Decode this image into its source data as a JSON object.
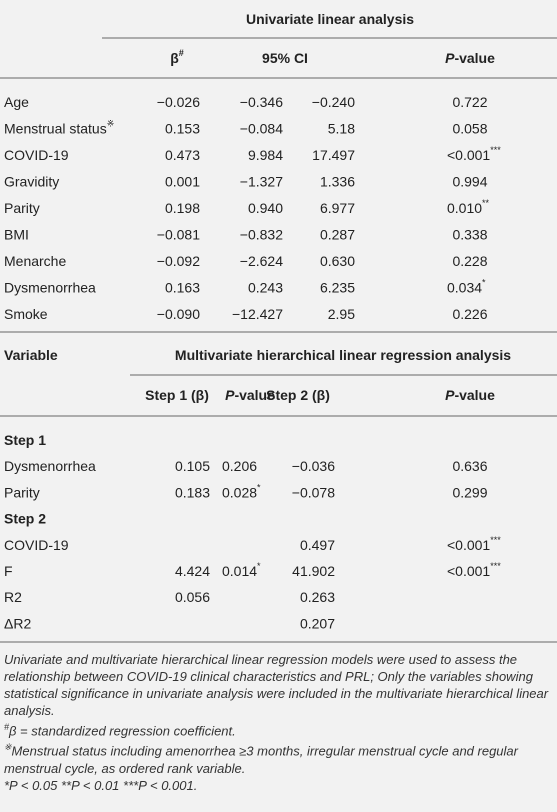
{
  "univariate": {
    "title": "Univariate linear analysis",
    "header": {
      "beta": "β",
      "beta_sup": "#",
      "ci": "95% CI",
      "p_italic": "P",
      "p_rest": "-value"
    },
    "rows": [
      {
        "label": "Age",
        "beta": "−0.026",
        "ci_low": "−0.346",
        "ci_high": "−0.240",
        "p": "0.722"
      },
      {
        "label": "Menstrual status",
        "label_sup": "※",
        "beta": "0.153",
        "ci_low": "−0.084",
        "ci_high": "5.18",
        "p": "0.058"
      },
      {
        "label": "COVID-19",
        "beta": "0.473",
        "ci_low": "9.984",
        "ci_high": "17.497",
        "p": "<0.001",
        "p_sig": "***"
      },
      {
        "label": "Gravidity",
        "beta": "0.001",
        "ci_low": "−1.327",
        "ci_high": "1.336",
        "p": "0.994"
      },
      {
        "label": "Parity",
        "beta": "0.198",
        "ci_low": "0.940",
        "ci_high": "6.977",
        "p": "0.010",
        "p_sig": "**"
      },
      {
        "label": "BMI",
        "beta": "−0.081",
        "ci_low": "−0.832",
        "ci_high": "0.287",
        "p": "0.338"
      },
      {
        "label": "Menarche",
        "beta": "−0.092",
        "ci_low": "−2.624",
        "ci_high": "0.630",
        "p": "0.228"
      },
      {
        "label": "Dysmenorrhea",
        "beta": "0.163",
        "ci_low": "0.243",
        "ci_high": "6.235",
        "p": "0.034",
        "p_sig": "*"
      },
      {
        "label": "Smoke",
        "beta": "−0.090",
        "ci_low": "−12.427",
        "ci_high": "2.95",
        "p": "0.226"
      }
    ]
  },
  "multivariate": {
    "variable_header": "Variable",
    "title": "Multivariate hierarchical linear regression analysis",
    "header": {
      "step1": "Step 1 (β)",
      "p1_italic": "P",
      "p1_rest": "-value",
      "step2": "Step 2 (β)",
      "p2_italic": "P",
      "p2_rest": "-value"
    },
    "rows": [
      {
        "label": "Step 1",
        "section": true
      },
      {
        "label": "Dysmenorrhea",
        "step1": "0.105",
        "p1": "0.206",
        "step2": "−0.036",
        "p2": "0.636"
      },
      {
        "label": "Parity",
        "step1": "0.183",
        "p1": "0.028",
        "p1_sig": "*",
        "step2": "−0.078",
        "p2": "0.299"
      },
      {
        "label": "Step 2",
        "section": true
      },
      {
        "label": "COVID-19",
        "step2": "0.497",
        "p2": "<0.001",
        "p2_sig": "***"
      },
      {
        "label": "F",
        "step1": "4.424",
        "p1": "0.014",
        "p1_sig": "*",
        "step2": "41.902",
        "p2": "<0.001",
        "p2_sig": "***"
      },
      {
        "label": "R2",
        "step1": "0.056",
        "step2": "0.263"
      },
      {
        "label": "ΔR2",
        "step2": "0.207"
      }
    ]
  },
  "notes": {
    "text1": "Univariate and multivariate hierarchical linear regression models were used to assess the relationship between COVID-19 clinical characteristics and PRL; Only the variables showing statistical significance in univariate analysis were included in the multivariate hierarchical linear analysis.",
    "text2_sup": "#",
    "text2": "β = standardized regression coefficient.",
    "text3_sup": "※",
    "text3": "Menstrual status including amenorrhea ≥3 months, irregular menstrual cycle and regular menstrual cycle, as ordered rank variable.",
    "text4": "*P < 0.05 **P < 0.01 ***P < 0.001."
  }
}
